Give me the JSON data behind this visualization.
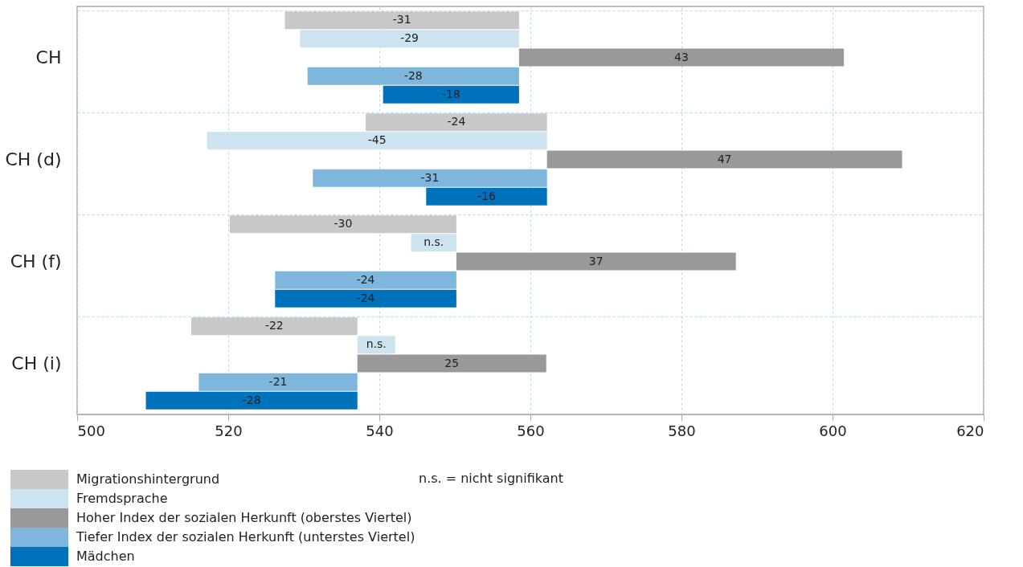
{
  "chart_data": {
    "type": "bar",
    "orientation": "horizontal",
    "categories": [
      "CH",
      "CH (d)",
      "CH (f)",
      "CH (i)"
    ],
    "series": [
      {
        "name": "Migrationshintergrund",
        "color": "#c8c8c8",
        "base": [
          558.5,
          562.2,
          550.2,
          537.1
        ],
        "values": [
          -31,
          -24,
          -30,
          -22
        ],
        "value_labels": [
          "-31",
          "-24",
          "-30",
          "-22"
        ]
      },
      {
        "name": "Fremdsprache",
        "color": "#cde3f0",
        "base": [
          558.5,
          562.2,
          550.2,
          537.1
        ],
        "values": [
          -29,
          -45,
          -6,
          5
        ],
        "value_labels": [
          "-29",
          "-45",
          "n.s.",
          "n.s."
        ]
      },
      {
        "name": "Hoher Index der sozialen Herkunft (oberstes Viertel)",
        "color": "#999999",
        "base": [
          558.5,
          562.2,
          550.2,
          537.1
        ],
        "values": [
          43,
          47,
          37,
          25
        ],
        "value_labels": [
          "43",
          "47",
          "37",
          "25"
        ]
      },
      {
        "name": "Tiefer Index der sozialen Herkunft (unterstes Viertel)",
        "color": "#7fb6db",
        "base": [
          558.5,
          562.2,
          550.2,
          537.1
        ],
        "values": [
          -28,
          -31,
          -24,
          -21
        ],
        "value_labels": [
          "-28",
          "-31",
          "-24",
          "-21"
        ]
      },
      {
        "name": "Mädchen",
        "color": "#0072bb",
        "base": [
          558.5,
          562.2,
          550.2,
          537.1
        ],
        "values": [
          -18,
          -16,
          -24,
          -28
        ],
        "value_labels": [
          "-18",
          "-16",
          "-24",
          "-28"
        ]
      }
    ],
    "xlim": [
      500,
      620
    ],
    "xticks": [
      500,
      520,
      540,
      560,
      580,
      600,
      620
    ],
    "grid": true,
    "legend": "bottom left",
    "annotations": [
      "n.s. = nicht signifikant"
    ]
  }
}
